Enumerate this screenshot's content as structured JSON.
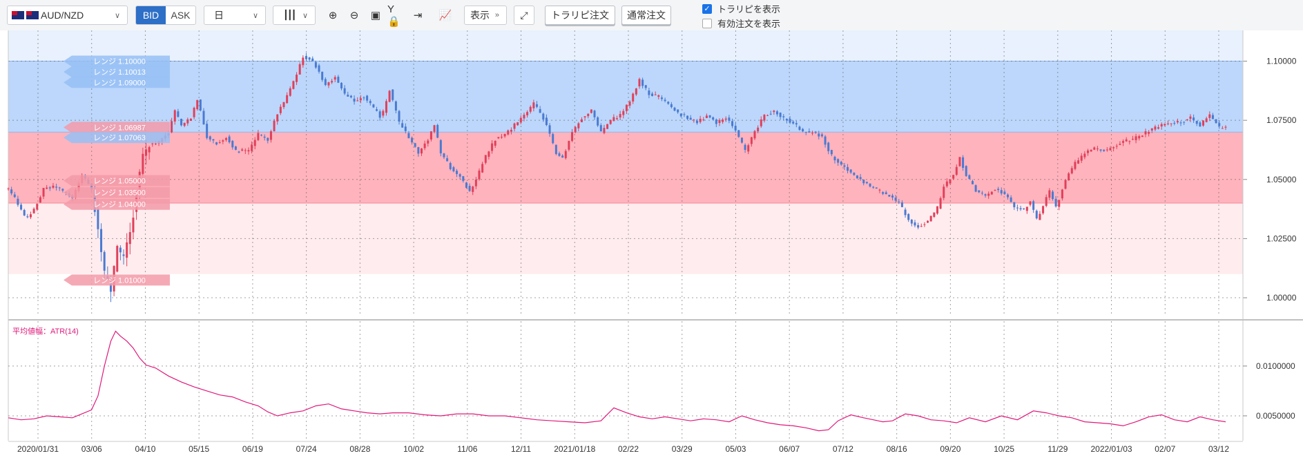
{
  "toolbar": {
    "pair": "AUD/NZD",
    "bid_label": "BID",
    "ask_label": "ASK",
    "period": "日",
    "display_label": "表示",
    "trap_order_label": "トラリピ注文",
    "normal_order_label": "通常注文",
    "show_trap": {
      "label": "トラリピを表示",
      "checked": true
    },
    "show_orders": {
      "label": "有効注文を表示",
      "checked": false
    }
  },
  "colors": {
    "buy_band": "#ffb3bd",
    "buy_band_light": "#ffecee",
    "sell_band": "#bcd7fb",
    "sell_band_light": "#e8f1fd",
    "candle_up": "#e0405a",
    "candle_down": "#4a7ad1",
    "atr_line": "#e0187a"
  },
  "chart_data": [
    {
      "type": "candlestick",
      "ylim": [
        0.993,
        1.113
      ],
      "y_ticks": [
        "1.10000",
        "1.07500",
        "1.05000",
        "1.02500",
        "1.00000"
      ],
      "y_tick_values": [
        1.1,
        1.075,
        1.05,
        1.025,
        1.0
      ],
      "x_ticks": [
        "2020/01/31",
        "03/06",
        "04/10",
        "05/15",
        "06/19",
        "07/24",
        "08/28",
        "10/02",
        "11/06",
        "12/11",
        "2021/01/18",
        "02/22",
        "03/29",
        "05/03",
        "06/07",
        "07/12",
        "08/16",
        "09/20",
        "10/25",
        "11/29",
        "2022/01/03",
        "02/07",
        "03/12"
      ],
      "bands": [
        {
          "side": "sell",
          "from": 1.07,
          "to": 1.1
        },
        {
          "side": "sell-light",
          "from": 1.1,
          "to": 1.113
        },
        {
          "side": "buy",
          "from": 1.04,
          "to": 1.07
        },
        {
          "side": "buy-light",
          "from": 1.01,
          "to": 1.04
        }
      ],
      "range_labels": [
        {
          "text": "レンジ 1.10000",
          "value": 1.1,
          "side": "sell"
        },
        {
          "text": "レンジ 1.10013",
          "value": 1.0955,
          "side": "sell"
        },
        {
          "text": "レンジ 1.09000",
          "value": 1.091,
          "side": "sell"
        },
        {
          "text": "レンジ 1.06987",
          "value": 1.072,
          "side": "buy"
        },
        {
          "text": "レンジ 1.07063",
          "value": 1.0677,
          "side": "sell"
        },
        {
          "text": "レンジ 1.05000",
          "value": 1.0495,
          "side": "buy"
        },
        {
          "text": "レンジ 1.03500",
          "value": 1.0445,
          "side": "buy"
        },
        {
          "text": "レンジ 1.04000",
          "value": 1.0395,
          "side": "buy"
        },
        {
          "text": "レンジ 1.01000",
          "value": 1.0075,
          "side": "buy"
        }
      ],
      "close_path": [
        [
          0,
          1.046
        ],
        [
          5,
          1.041
        ],
        [
          11,
          1.033
        ],
        [
          16,
          1.037
        ],
        [
          22,
          1.046
        ],
        [
          30,
          1.047
        ],
        [
          40,
          1.042
        ],
        [
          46,
          1.052
        ],
        [
          52,
          1.046
        ],
        [
          56,
          1.03
        ],
        [
          60,
          1.01
        ],
        [
          64,
          1.003
        ],
        [
          68,
          1.02
        ],
        [
          72,
          1.018
        ],
        [
          76,
          1.027
        ],
        [
          80,
          1.045
        ],
        [
          84,
          1.06
        ],
        [
          88,
          1.065
        ],
        [
          94,
          1.066
        ],
        [
          100,
          1.07
        ],
        [
          104,
          1.079
        ],
        [
          108,
          1.073
        ],
        [
          114,
          1.076
        ],
        [
          118,
          1.084
        ],
        [
          124,
          1.068
        ],
        [
          130,
          1.065
        ],
        [
          136,
          1.068
        ],
        [
          142,
          1.062
        ],
        [
          150,
          1.062
        ],
        [
          156,
          1.069
        ],
        [
          162,
          1.067
        ],
        [
          168,
          1.078
        ],
        [
          174,
          1.085
        ],
        [
          180,
          1.094
        ],
        [
          184,
          1.102
        ],
        [
          188,
          1.101
        ],
        [
          192,
          1.098
        ],
        [
          198,
          1.09
        ],
        [
          204,
          1.093
        ],
        [
          210,
          1.086
        ],
        [
          216,
          1.083
        ],
        [
          222,
          1.085
        ],
        [
          228,
          1.08
        ],
        [
          233,
          1.076
        ],
        [
          238,
          1.088
        ],
        [
          244,
          1.074
        ],
        [
          250,
          1.068
        ],
        [
          256,
          1.061
        ],
        [
          262,
          1.067
        ],
        [
          266,
          1.073
        ],
        [
          270,
          1.061
        ],
        [
          276,
          1.055
        ],
        [
          282,
          1.051
        ],
        [
          288,
          1.045
        ],
        [
          292,
          1.05
        ],
        [
          298,
          1.06
        ],
        [
          304,
          1.067
        ],
        [
          310,
          1.069
        ],
        [
          316,
          1.073
        ],
        [
          322,
          1.077
        ],
        [
          328,
          1.082
        ],
        [
          334,
          1.076
        ],
        [
          338,
          1.069
        ],
        [
          342,
          1.061
        ],
        [
          346,
          1.059
        ],
        [
          352,
          1.07
        ],
        [
          358,
          1.076
        ],
        [
          364,
          1.079
        ],
        [
          370,
          1.07
        ],
        [
          376,
          1.075
        ],
        [
          382,
          1.077
        ],
        [
          388,
          1.083
        ],
        [
          394,
          1.092
        ],
        [
          400,
          1.086
        ],
        [
          406,
          1.085
        ],
        [
          412,
          1.082
        ],
        [
          418,
          1.078
        ],
        [
          424,
          1.076
        ],
        [
          430,
          1.074
        ],
        [
          436,
          1.077
        ],
        [
          442,
          1.074
        ],
        [
          448,
          1.076
        ],
        [
          454,
          1.071
        ],
        [
          460,
          1.062
        ],
        [
          466,
          1.07
        ],
        [
          472,
          1.077
        ],
        [
          478,
          1.079
        ],
        [
          484,
          1.076
        ],
        [
          490,
          1.074
        ],
        [
          496,
          1.07
        ],
        [
          502,
          1.07
        ],
        [
          508,
          1.068
        ],
        [
          514,
          1.06
        ],
        [
          520,
          1.056
        ],
        [
          526,
          1.053
        ],
        [
          532,
          1.05
        ],
        [
          538,
          1.047
        ],
        [
          544,
          1.045
        ],
        [
          550,
          1.043
        ],
        [
          556,
          1.04
        ],
        [
          562,
          1.033
        ],
        [
          568,
          1.03
        ],
        [
          574,
          1.032
        ],
        [
          580,
          1.038
        ],
        [
          584,
          1.047
        ],
        [
          590,
          1.052
        ],
        [
          594,
          1.059
        ],
        [
          598,
          1.052
        ],
        [
          604,
          1.045
        ],
        [
          610,
          1.043
        ],
        [
          616,
          1.046
        ],
        [
          622,
          1.044
        ],
        [
          628,
          1.038
        ],
        [
          634,
          1.037
        ],
        [
          638,
          1.041
        ],
        [
          642,
          1.033
        ],
        [
          646,
          1.039
        ],
        [
          650,
          1.045
        ],
        [
          654,
          1.038
        ],
        [
          660,
          1.05
        ],
        [
          666,
          1.057
        ],
        [
          672,
          1.061
        ],
        [
          678,
          1.063
        ],
        [
          684,
          1.062
        ],
        [
          690,
          1.064
        ],
        [
          696,
          1.066
        ],
        [
          702,
          1.067
        ],
        [
          708,
          1.069
        ],
        [
          714,
          1.071
        ],
        [
          720,
          1.073
        ],
        [
          726,
          1.074
        ],
        [
          732,
          1.074
        ],
        [
          738,
          1.076
        ],
        [
          744,
          1.073
        ],
        [
          750,
          1.077
        ],
        [
          756,
          1.072
        ],
        [
          760,
          1.072
        ]
      ]
    },
    {
      "type": "line",
      "title": "平均値幅：ATR(14)",
      "ylim": [
        0.0025,
        0.0145
      ],
      "y_ticks": [
        "0.0100000",
        "0.0050000"
      ],
      "y_tick_values": [
        0.01,
        0.005
      ],
      "values": [
        [
          0,
          0.0048
        ],
        [
          8,
          0.0046
        ],
        [
          16,
          0.0047
        ],
        [
          24,
          0.005
        ],
        [
          32,
          0.0049
        ],
        [
          40,
          0.0048
        ],
        [
          46,
          0.0052
        ],
        [
          52,
          0.0056
        ],
        [
          56,
          0.007
        ],
        [
          60,
          0.01
        ],
        [
          64,
          0.0125
        ],
        [
          67,
          0.0135
        ],
        [
          70,
          0.013
        ],
        [
          74,
          0.0125
        ],
        [
          78,
          0.0118
        ],
        [
          82,
          0.0108
        ],
        [
          86,
          0.0101
        ],
        [
          92,
          0.0098
        ],
        [
          100,
          0.009
        ],
        [
          108,
          0.0084
        ],
        [
          116,
          0.0079
        ],
        [
          124,
          0.0075
        ],
        [
          132,
          0.0071
        ],
        [
          140,
          0.0069
        ],
        [
          148,
          0.0064
        ],
        [
          156,
          0.006
        ],
        [
          162,
          0.0054
        ],
        [
          168,
          0.005
        ],
        [
          176,
          0.0053
        ],
        [
          184,
          0.0055
        ],
        [
          192,
          0.006
        ],
        [
          200,
          0.0062
        ],
        [
          208,
          0.0057
        ],
        [
          216,
          0.0055
        ],
        [
          224,
          0.0053
        ],
        [
          232,
          0.0052
        ],
        [
          240,
          0.0053
        ],
        [
          250,
          0.0053
        ],
        [
          260,
          0.0051
        ],
        [
          270,
          0.005
        ],
        [
          280,
          0.0052
        ],
        [
          290,
          0.0052
        ],
        [
          300,
          0.005
        ],
        [
          310,
          0.005
        ],
        [
          320,
          0.0048
        ],
        [
          330,
          0.0046
        ],
        [
          340,
          0.0045
        ],
        [
          350,
          0.0044
        ],
        [
          360,
          0.0043
        ],
        [
          370,
          0.0045
        ],
        [
          378,
          0.0058
        ],
        [
          386,
          0.0053
        ],
        [
          394,
          0.0049
        ],
        [
          402,
          0.0047
        ],
        [
          410,
          0.0049
        ],
        [
          418,
          0.0047
        ],
        [
          426,
          0.0045
        ],
        [
          434,
          0.0047
        ],
        [
          442,
          0.0046
        ],
        [
          450,
          0.0044
        ],
        [
          458,
          0.005
        ],
        [
          466,
          0.0046
        ],
        [
          474,
          0.0043
        ],
        [
          482,
          0.0041
        ],
        [
          490,
          0.004
        ],
        [
          498,
          0.0038
        ],
        [
          506,
          0.0035
        ],
        [
          512,
          0.0036
        ],
        [
          518,
          0.0045
        ],
        [
          526,
          0.0051
        ],
        [
          534,
          0.0048
        ],
        [
          540,
          0.0046
        ],
        [
          546,
          0.0044
        ],
        [
          552,
          0.0045
        ],
        [
          560,
          0.0052
        ],
        [
          568,
          0.005
        ],
        [
          576,
          0.0046
        ],
        [
          584,
          0.0045
        ],
        [
          592,
          0.0043
        ],
        [
          600,
          0.0048
        ],
        [
          610,
          0.0044
        ],
        [
          620,
          0.005
        ],
        [
          630,
          0.0046
        ],
        [
          640,
          0.0055
        ],
        [
          648,
          0.0053
        ],
        [
          656,
          0.005
        ],
        [
          664,
          0.0048
        ],
        [
          672,
          0.0044
        ],
        [
          680,
          0.0043
        ],
        [
          688,
          0.0042
        ],
        [
          696,
          0.004
        ],
        [
          704,
          0.0044
        ],
        [
          712,
          0.0049
        ],
        [
          720,
          0.0051
        ],
        [
          728,
          0.0046
        ],
        [
          736,
          0.0044
        ],
        [
          744,
          0.0049
        ],
        [
          752,
          0.0046
        ],
        [
          760,
          0.0044
        ]
      ]
    }
  ]
}
